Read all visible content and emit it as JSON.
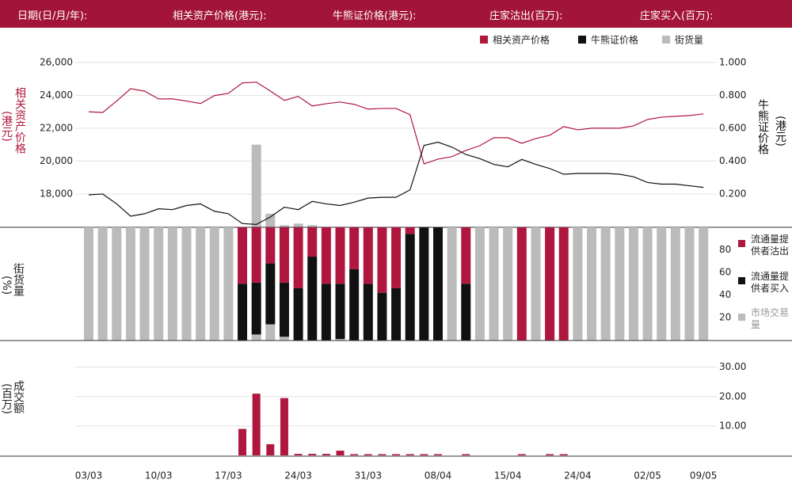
{
  "header": {
    "labels": [
      "日期(日/月/年):",
      "相关资产价格(港元):",
      "牛熊证价格(港元):",
      "庄家沽出(百万):",
      "庄家买入(百万):"
    ]
  },
  "chart_data": [
    {
      "type": "line",
      "ylabel": "相关资产价格",
      "ylabel_unit": "(港元)",
      "y2label": "牛熊证价格",
      "y2label_unit": "(港元)",
      "ylim": [
        16000,
        27000
      ],
      "yticks": [
        {
          "value": 18000,
          "label": "18,000"
        },
        {
          "value": 20000,
          "label": "20,000"
        },
        {
          "value": 22000,
          "label": "22,000"
        },
        {
          "value": 24000,
          "label": "24,000"
        },
        {
          "value": 26000,
          "label": "26,000"
        }
      ],
      "y2lim": [
        0,
        1.1
      ],
      "y2ticks": [
        {
          "value": 0.2,
          "label": "0.200"
        },
        {
          "value": 0.4,
          "label": "0.400"
        },
        {
          "value": 0.6,
          "label": "0.600"
        },
        {
          "value": 0.8,
          "label": "0.800"
        },
        {
          "value": 1,
          "label": "1.000"
        }
      ],
      "grid": true,
      "series": [
        {
          "name": "相关资产价格",
          "type": "line",
          "axis": "y",
          "color": "#b0173e",
          "values": [
            23000,
            22950,
            23650,
            24400,
            24250,
            23780,
            23780,
            23650,
            23500,
            23980,
            24120,
            24750,
            24800,
            24260,
            23690,
            23930,
            23350,
            23490,
            23590,
            23450,
            23160,
            23200,
            23200,
            22820,
            19830,
            20120,
            20270,
            20650,
            20940,
            21420,
            21420,
            21080,
            21370,
            21570,
            22100,
            21900,
            22000,
            22000,
            22000,
            22140,
            22530,
            22670,
            22720,
            22770,
            22870
          ]
        },
        {
          "name": "牛熊证价格",
          "type": "line",
          "axis": "y2",
          "color": "#111111",
          "values": [
            0.195,
            0.2,
            0.14,
            0.065,
            0.08,
            0.11,
            0.105,
            0.13,
            0.14,
            0.095,
            0.08,
            0.02,
            0.015,
            0.06,
            0.12,
            0.105,
            0.155,
            0.14,
            0.13,
            0.15,
            0.175,
            0.18,
            0.18,
            0.225,
            0.495,
            0.515,
            0.485,
            0.44,
            0.415,
            0.38,
            0.365,
            0.41,
            0.38,
            0.355,
            0.32,
            0.325,
            0.325,
            0.325,
            0.32,
            0.305,
            0.27,
            0.26,
            0.26,
            0.25,
            0.24
          ]
        },
        {
          "name": "街货量",
          "type": "bar",
          "axis": "y2",
          "color": "#bbbbbb",
          "values": [
            0,
            0,
            0,
            0,
            0,
            0,
            0,
            0,
            0,
            0,
            0,
            0,
            0.5,
            0.08,
            0.01,
            0.02,
            0.01,
            0,
            0,
            0,
            0,
            0,
            0,
            0,
            0,
            0,
            0,
            0,
            0,
            0,
            0,
            0,
            0,
            0,
            0,
            0,
            0,
            0,
            0,
            0,
            0,
            0,
            0,
            0,
            0
          ]
        }
      ]
    },
    {
      "type": "stacked-bar",
      "ylabel": "街货量",
      "ylabel_unit": "(%)",
      "ylim": [
        0,
        100
      ],
      "yticks": [
        20,
        40,
        60,
        80
      ],
      "series": [
        {
          "name": "流通量提供者沽出",
          "color": "#b0173e",
          "values": [
            0,
            0,
            0,
            0,
            0,
            0,
            0,
            0,
            0,
            0,
            0,
            50,
            49,
            32,
            49,
            54,
            26,
            50,
            50,
            37,
            50,
            58,
            54,
            6,
            0,
            0,
            0,
            50,
            0,
            0,
            0,
            100,
            0,
            100,
            100,
            0,
            0,
            0,
            0,
            0,
            0,
            0,
            0,
            0,
            0
          ]
        },
        {
          "name": "流通量提供者买入",
          "color": "#111111",
          "values": [
            0,
            0,
            0,
            0,
            0,
            0,
            0,
            0,
            0,
            0,
            0,
            50,
            46,
            54,
            48,
            46,
            74,
            50,
            49,
            63,
            50,
            42,
            46,
            94,
            100,
            100,
            0,
            50,
            0,
            0,
            0,
            0,
            0,
            0,
            0,
            0,
            0,
            0,
            0,
            0,
            0,
            0,
            0,
            0,
            0
          ]
        },
        {
          "name": "市场交易量",
          "color": "#bbbbbb",
          "values": [
            100,
            100,
            100,
            100,
            100,
            100,
            100,
            100,
            100,
            100,
            100,
            0,
            5,
            14,
            3,
            0,
            0,
            0,
            1,
            0,
            0,
            0,
            0,
            0,
            0,
            0,
            100,
            0,
            100,
            100,
            100,
            0,
            100,
            0,
            0,
            100,
            100,
            100,
            100,
            100,
            100,
            100,
            100,
            100,
            100
          ]
        }
      ]
    },
    {
      "type": "bar",
      "ylabel": "成交额",
      "ylabel_unit": "(百万)",
      "color": "#b0173e",
      "categories": [
        "03/03",
        null,
        null,
        null,
        null,
        "10/03",
        null,
        null,
        null,
        null,
        "17/03",
        null,
        null,
        null,
        null,
        "24/03",
        null,
        null,
        null,
        null,
        "31/03",
        null,
        null,
        null,
        null,
        "08/04",
        null,
        null,
        null,
        null,
        "15/04",
        null,
        null,
        null,
        null,
        "24/04",
        null,
        null,
        null,
        null,
        "02/05",
        null,
        null,
        null,
        "09/05"
      ],
      "values": [
        0,
        0,
        0,
        0,
        0,
        0,
        0,
        0,
        0,
        0,
        0,
        9,
        21,
        3.8,
        19.5,
        0.5,
        0.5,
        0.5,
        1.6,
        0.4,
        0.4,
        0.4,
        0.4,
        0.4,
        0.4,
        0.4,
        0,
        0.4,
        0,
        0,
        0,
        0.4,
        0,
        0.4,
        0.4,
        0,
        0,
        0,
        0,
        0,
        0,
        0,
        0,
        0,
        0
      ],
      "ylim": [
        0,
        38
      ],
      "yticks": [
        {
          "value": 10,
          "label": "10.00"
        },
        {
          "value": 20,
          "label": "20.00"
        },
        {
          "value": 30,
          "label": "30.00"
        }
      ],
      "grid": true
    }
  ]
}
